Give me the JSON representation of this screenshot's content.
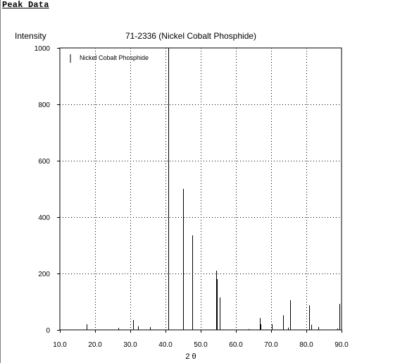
{
  "page": {
    "heading": "Peak Data"
  },
  "chart_data": {
    "type": "bar",
    "title": "71-2336 (Nickel Cobalt Phosphide)",
    "ylabel": "Intensity",
    "xlabel": "2 θ",
    "xlim": [
      10,
      90
    ],
    "ylim": [
      0,
      1000
    ],
    "x_ticks": [
      "10.0",
      "20.0",
      "30.0",
      "40.0",
      "50.0",
      "60.0",
      "70.0",
      "80.0",
      "90.0"
    ],
    "y_ticks": [
      "0",
      "200",
      "400",
      "600",
      "800",
      "1000"
    ],
    "grid": true,
    "legend_position": "top-left",
    "series": [
      {
        "name": "Nickel Cobalt Phosphide",
        "color": "#000000",
        "peaks": [
          {
            "x": 17.6,
            "y": 20
          },
          {
            "x": 26.6,
            "y": 7
          },
          {
            "x": 30.8,
            "y": 35
          },
          {
            "x": 32.3,
            "y": 13
          },
          {
            "x": 35.5,
            "y": 10
          },
          {
            "x": 40.8,
            "y": 1000
          },
          {
            "x": 45.0,
            "y": 500
          },
          {
            "x": 47.5,
            "y": 335
          },
          {
            "x": 54.3,
            "y": 210
          },
          {
            "x": 54.6,
            "y": 180
          },
          {
            "x": 55.3,
            "y": 115
          },
          {
            "x": 63.5,
            "y": 3
          },
          {
            "x": 66.7,
            "y": 42
          },
          {
            "x": 67.0,
            "y": 20
          },
          {
            "x": 70.1,
            "y": 20
          },
          {
            "x": 73.3,
            "y": 52
          },
          {
            "x": 74.8,
            "y": 8
          },
          {
            "x": 75.4,
            "y": 105
          },
          {
            "x": 80.8,
            "y": 87
          },
          {
            "x": 81.3,
            "y": 18
          },
          {
            "x": 83.4,
            "y": 10
          },
          {
            "x": 88.7,
            "y": 5
          },
          {
            "x": 89.3,
            "y": 92
          }
        ]
      }
    ]
  }
}
